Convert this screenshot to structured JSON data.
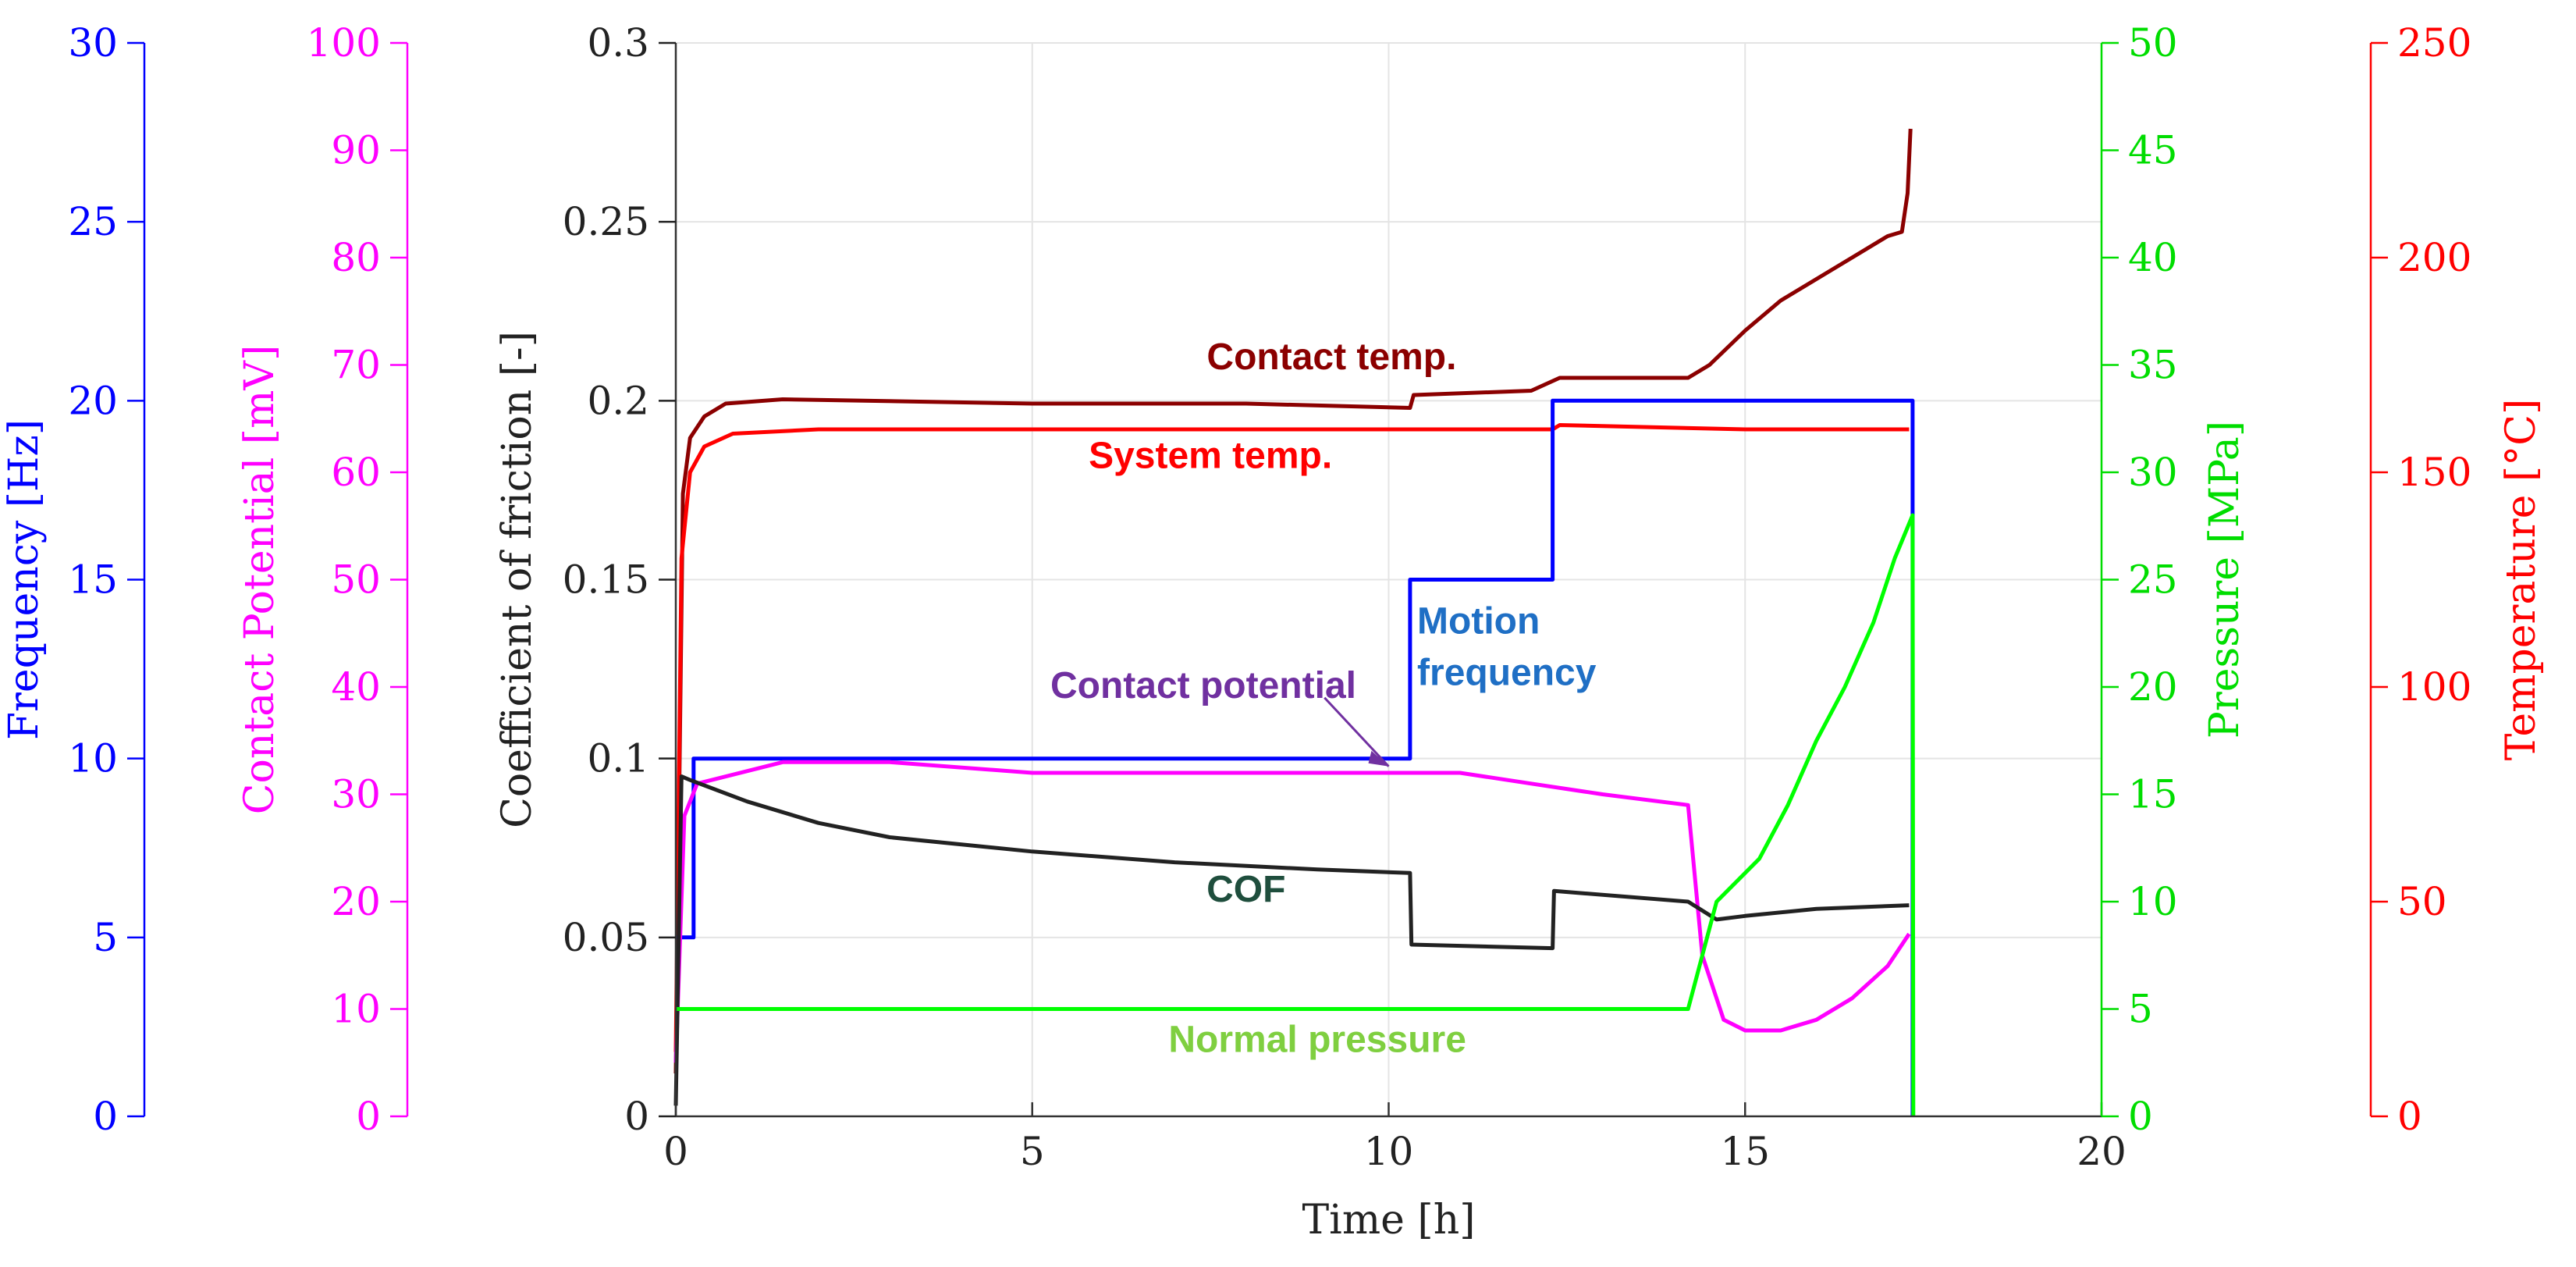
{
  "chart_data": {
    "type": "line",
    "x": {
      "label": "Time [h]",
      "range": [
        0,
        20
      ],
      "ticks": [
        0,
        5,
        10,
        15,
        20
      ]
    },
    "axes": {
      "frequency": {
        "label": "Frequency [Hz]",
        "range": [
          0,
          30
        ],
        "ticks": [
          0,
          5,
          10,
          15,
          20,
          25,
          30
        ],
        "color": "#0000ff"
      },
      "potential": {
        "label": "Contact Potential [mV]",
        "range": [
          0,
          100
        ],
        "ticks": [
          0,
          10,
          20,
          30,
          40,
          50,
          60,
          70,
          80,
          90,
          100
        ],
        "color": "#ff00ff"
      },
      "cof": {
        "label": "Coefficient of friction [-]",
        "range": [
          0,
          0.3
        ],
        "ticks": [
          0,
          0.05,
          0.1,
          0.15,
          0.2,
          0.25,
          0.3
        ],
        "color": "#222222"
      },
      "pressure": {
        "label": "Pressure [MPa]",
        "range": [
          0,
          50
        ],
        "ticks": [
          0,
          5,
          10,
          15,
          20,
          25,
          30,
          35,
          40,
          45,
          50
        ],
        "color": "#00dd00"
      },
      "temperature": {
        "label": "Temperature [°C]",
        "range": [
          0,
          250
        ],
        "ticks": [
          0,
          50,
          100,
          150,
          200,
          250
        ],
        "color": "#ff0000"
      }
    },
    "grid": true,
    "series": [
      {
        "axis": "temperature",
        "color": "#8b0000",
        "points": [
          [
            0,
            10
          ],
          [
            0.1,
            145
          ],
          [
            0.2,
            158
          ],
          [
            0.4,
            163
          ],
          [
            0.7,
            166
          ],
          [
            1.5,
            167
          ],
          [
            5,
            166
          ],
          [
            8,
            166
          ],
          [
            10.3,
            165
          ],
          [
            10.35,
            168
          ],
          [
            12,
            169
          ],
          [
            12.4,
            172
          ],
          [
            14.2,
            172
          ],
          [
            14.5,
            175
          ],
          [
            15,
            183
          ],
          [
            15.5,
            190
          ],
          [
            16,
            195
          ],
          [
            16.5,
            200
          ],
          [
            17,
            205
          ],
          [
            17.2,
            206
          ],
          [
            17.28,
            215
          ],
          [
            17.32,
            230
          ]
        ]
      },
      {
        "axis": "temperature",
        "color": "#ff0000",
        "points": [
          [
            0,
            15
          ],
          [
            0.08,
            130
          ],
          [
            0.2,
            150
          ],
          [
            0.4,
            156
          ],
          [
            0.8,
            159
          ],
          [
            2,
            160
          ],
          [
            5,
            160
          ],
          [
            10,
            160
          ],
          [
            12.3,
            160
          ],
          [
            12.4,
            161
          ],
          [
            15,
            160
          ],
          [
            17.3,
            160
          ]
        ]
      },
      {
        "axis": "frequency",
        "color": "#0000ff",
        "points": [
          [
            0,
            5
          ],
          [
            0.25,
            5
          ],
          [
            0.25,
            10
          ],
          [
            10.3,
            10
          ],
          [
            10.3,
            15
          ],
          [
            12.3,
            15
          ],
          [
            12.3,
            20
          ],
          [
            17.35,
            20
          ],
          [
            17.35,
            0
          ]
        ]
      },
      {
        "axis": "potential",
        "color": "#ff00ff",
        "points": [
          [
            0,
            5
          ],
          [
            0.12,
            28
          ],
          [
            0.3,
            31
          ],
          [
            1.5,
            33
          ],
          [
            3,
            33
          ],
          [
            5,
            32
          ],
          [
            7,
            32
          ],
          [
            9,
            32
          ],
          [
            10.3,
            32
          ],
          [
            11,
            32
          ],
          [
            12,
            31
          ],
          [
            13,
            30
          ],
          [
            14.2,
            29
          ],
          [
            14.4,
            15
          ],
          [
            14.7,
            9
          ],
          [
            15,
            8
          ],
          [
            15.5,
            8
          ],
          [
            16,
            9
          ],
          [
            16.5,
            11
          ],
          [
            17,
            14
          ],
          [
            17.3,
            17
          ]
        ]
      },
      {
        "axis": "cof",
        "color": "#222222",
        "points": [
          [
            0,
            0.003
          ],
          [
            0.08,
            0.095
          ],
          [
            0.2,
            0.094
          ],
          [
            1,
            0.088
          ],
          [
            2,
            0.082
          ],
          [
            3,
            0.078
          ],
          [
            5,
            0.074
          ],
          [
            7,
            0.071
          ],
          [
            9,
            0.069
          ],
          [
            10.3,
            0.068
          ],
          [
            10.32,
            0.048
          ],
          [
            12.3,
            0.047
          ],
          [
            12.32,
            0.063
          ],
          [
            14.2,
            0.06
          ],
          [
            14.6,
            0.055
          ],
          [
            15,
            0.056
          ],
          [
            16,
            0.058
          ],
          [
            17.3,
            0.059
          ]
        ]
      },
      {
        "axis": "pressure",
        "color": "#00ff00",
        "points": [
          [
            0,
            5
          ],
          [
            14.2,
            5
          ],
          [
            14.6,
            10
          ],
          [
            15.2,
            12
          ],
          [
            15.6,
            14.5
          ],
          [
            16,
            17.5
          ],
          [
            16.4,
            20
          ],
          [
            16.8,
            23
          ],
          [
            17.1,
            26
          ],
          [
            17.35,
            28
          ],
          [
            17.36,
            0
          ]
        ]
      }
    ],
    "annotations": [
      {
        "text": "Contact temp.",
        "color": "#8b0000",
        "x": 9.2,
        "axis": "temperature",
        "y": 174
      },
      {
        "text": "System temp.",
        "color": "#ff0000",
        "x": 7.5,
        "axis": "temperature",
        "y": 151
      },
      {
        "text": "Motion frequency",
        "color": "#1f6fc5",
        "x": 10.4,
        "axis": "frequency",
        "y": 13.5
      },
      {
        "text": "Contact potential",
        "color": "#7030a0",
        "x": 7.4,
        "axis": "potential",
        "y": 39
      },
      {
        "text": "COF",
        "color": "#1f4e3d",
        "x": 8.0,
        "axis": "cof",
        "y": 0.06
      },
      {
        "text": "Normal pressure",
        "color": "#7fcf40",
        "x": 9.0,
        "axis": "pressure",
        "y": 3.0
      }
    ]
  }
}
